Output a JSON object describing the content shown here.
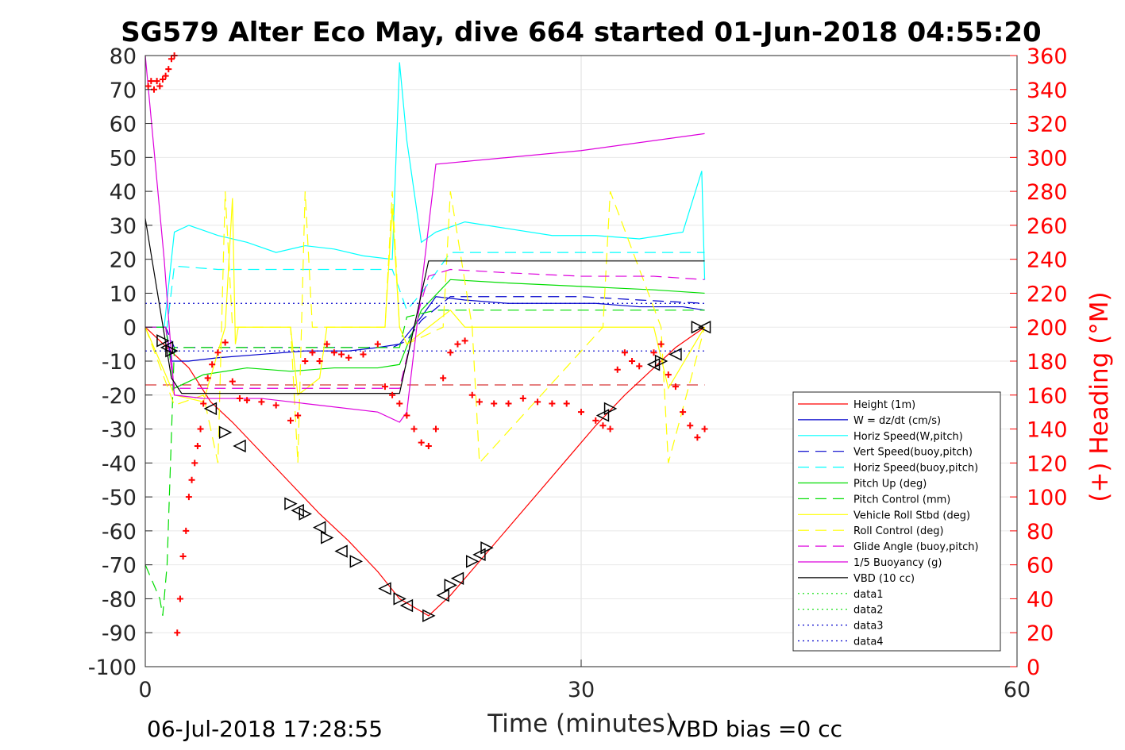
{
  "chart_data": {
    "type": "line",
    "title": "SG579 Alter Eco May, dive 664 started 01-Jun-2018 04:55:20",
    "xlabel": "Time (minutes)",
    "ylabel_right": "(+) Heading (°M)",
    "xlim": [
      0,
      60
    ],
    "ylim": [
      -100,
      80
    ],
    "ylim_right": [
      0,
      360
    ],
    "x_ticks": [
      0,
      30,
      60
    ],
    "y_ticks": [
      80,
      70,
      60,
      50,
      40,
      30,
      20,
      10,
      0,
      -10,
      -20,
      -30,
      -40,
      -50,
      -60,
      -70,
      -80,
      -90,
      -100
    ],
    "y_ticks_right": [
      360,
      340,
      320,
      300,
      280,
      260,
      240,
      220,
      200,
      180,
      160,
      140,
      120,
      100,
      80,
      60,
      40,
      20,
      0
    ],
    "grid": "on",
    "legend_position": "lower-right",
    "footer_left": "06-Jul-2018 17:28:55",
    "footer_right": "VBD bias =0 cc",
    "series": [
      {
        "name": "Height (1m)",
        "color": "#ff0000",
        "style": "solid",
        "x": [
          0,
          1.5,
          3,
          4.5,
          6,
          8,
          10,
          12,
          14,
          16,
          17.5,
          19.5,
          21,
          23,
          25,
          27,
          29,
          31,
          33,
          35,
          36.5,
          38.5
        ],
        "y": [
          0,
          -6,
          -12,
          -22,
          -28,
          -37,
          -46,
          -55,
          -63,
          -72,
          -80,
          -85,
          -79,
          -69,
          -59,
          -49,
          -39,
          -29,
          -20,
          -12,
          -6,
          0
        ]
      },
      {
        "name": "W = dz/dt (cm/s)",
        "color": "#0000cc",
        "style": "solid",
        "x": [
          0,
          1.4,
          1.8,
          3,
          5,
          8,
          11,
          14,
          16,
          17.5,
          19,
          20,
          22,
          25,
          28,
          31,
          34,
          37,
          38.5
        ],
        "y": [
          0,
          0,
          -10,
          -10,
          -9,
          -8,
          -7,
          -7,
          -6,
          -5,
          3,
          9,
          8,
          7,
          7,
          7,
          6,
          6,
          5
        ]
      },
      {
        "name": "Horiz Speed(W,pitch)",
        "color": "#00ffff",
        "style": "solid",
        "x": [
          0,
          1.3,
          2,
          3,
          5,
          7,
          9,
          11,
          13,
          15,
          17,
          17.5,
          18,
          19,
          20,
          22,
          25,
          28,
          31,
          34,
          37,
          38.3,
          38.5
        ],
        "y": [
          0,
          0,
          28,
          30,
          27,
          25,
          22,
          24,
          23,
          21,
          20,
          78,
          55,
          25,
          28,
          31,
          29,
          27,
          27,
          26,
          28,
          46,
          14
        ]
      },
      {
        "name": "Vert Speed(buoy,pitch)",
        "color": "#0000cc",
        "style": "dashed",
        "x": [
          0,
          1.4,
          2,
          5,
          8,
          11,
          14,
          17,
          18,
          19,
          21,
          25,
          30,
          34,
          38.5
        ],
        "y": [
          0,
          0,
          -6,
          -6,
          -6,
          -6,
          -6,
          -6,
          -4,
          2,
          9,
          9,
          9,
          8,
          7
        ]
      },
      {
        "name": "Horiz Speed(buoy,pitch)",
        "color": "#00ffff",
        "style": "dashed",
        "x": [
          0,
          1.5,
          2,
          5,
          8,
          11,
          14,
          17,
          18,
          19,
          21,
          25,
          30,
          35,
          38.5
        ],
        "y": [
          0,
          0,
          18,
          17,
          17,
          17,
          17,
          17,
          5,
          10,
          22,
          22,
          22,
          22,
          22
        ]
      },
      {
        "name": "Pitch Up (deg)",
        "color": "#00dd00",
        "style": "solid",
        "x": [
          0,
          1.4,
          2,
          4,
          7,
          10,
          13,
          16,
          17.5,
          19,
          21,
          25,
          30,
          35,
          38.5
        ],
        "y": [
          0,
          0,
          -18,
          -14,
          -12,
          -13,
          -12,
          -12,
          -11,
          5,
          14,
          13,
          12,
          11,
          10
        ]
      },
      {
        "name": "Pitch Control (mm)",
        "color": "#00dd00",
        "style": "dashed",
        "x": [
          0,
          1,
          1.2,
          1.5,
          2,
          3,
          10,
          17.5,
          18,
          20,
          38.5
        ],
        "y": [
          -70,
          -80,
          -85,
          -70,
          -6,
          -6,
          -6,
          -6,
          3,
          5,
          5
        ]
      },
      {
        "name": "Vehicle Roll Stbd (deg)",
        "color": "#ffff00",
        "style": "solid",
        "x": [
          0,
          2,
          4,
          5.5,
          6,
          6.2,
          6.4,
          10,
          10.5,
          12,
          12.5,
          16.5,
          17,
          17.5,
          18,
          21,
          22,
          35,
          36,
          38.5
        ],
        "y": [
          0,
          -20,
          -22,
          0,
          38,
          -5,
          0,
          0,
          -20,
          -15,
          0,
          0,
          35,
          0,
          -5,
          5,
          0,
          0,
          -18,
          0
        ]
      },
      {
        "name": "Roll Control (deg)",
        "color": "#ffff00",
        "style": "dashed",
        "x": [
          0,
          2,
          4,
          5,
          5.5,
          6,
          6.5,
          10,
          10.5,
          11,
          11.5,
          16.5,
          17,
          17.5,
          18,
          20.5,
          21,
          22.5,
          23,
          31.5,
          32,
          35.5,
          36,
          38.5
        ],
        "y": [
          0,
          -23,
          -20,
          -40,
          40,
          0,
          0,
          0,
          -40,
          40,
          0,
          0,
          40,
          0,
          -5,
          0,
          40,
          0,
          -40,
          0,
          40,
          0,
          -40,
          0
        ]
      },
      {
        "name": "Glide Angle (buoy,pitch)",
        "color": "#dd00dd",
        "style": "dashed",
        "x": [
          0,
          1.4,
          2,
          5,
          8,
          11,
          14,
          17.5,
          18.5,
          19.5,
          21,
          25,
          30,
          35,
          38.5
        ],
        "y": [
          0,
          0,
          -18,
          -18,
          -18,
          -18,
          -18,
          -18,
          0,
          15,
          17,
          16,
          15,
          15,
          14
        ]
      },
      {
        "name": "1/5 Buoyancy (g)",
        "color": "#dd00dd",
        "style": "solid",
        "x": [
          0,
          1.3,
          2,
          4,
          8,
          12,
          16,
          17.5,
          18,
          20,
          30,
          38.5
        ],
        "y": [
          80,
          20,
          -20,
          -21,
          -21,
          -23,
          -25,
          -28,
          -25,
          48,
          52,
          57
        ]
      },
      {
        "name": "VBD (10 cc)",
        "color": "#000000",
        "style": "solid",
        "x": [
          0,
          1.8,
          2.5,
          17.5,
          19.5,
          38.5
        ],
        "y": [
          32,
          -15,
          -19.5,
          -19.5,
          19.5,
          19.5
        ]
      },
      {
        "name": "data1",
        "color": "#00dd00",
        "style": "dotted",
        "x": [],
        "y": []
      },
      {
        "name": "data2",
        "color": "#00dd00",
        "style": "dotted",
        "x": [],
        "y": []
      },
      {
        "name": "data3",
        "color": "#0000cc",
        "style": "dotted",
        "x": [
          0,
          38.5
        ],
        "y": [
          7,
          7
        ]
      },
      {
        "name": "data4",
        "color": "#0000cc",
        "style": "dotted",
        "x": [
          0,
          38.5
        ],
        "y": [
          -7,
          -7
        ]
      }
    ],
    "heading_reference": {
      "color": "#cc0000",
      "style": "dashed",
      "x": [
        0,
        38.5
      ],
      "y": [
        -17,
        -17
      ]
    },
    "heading_points": {
      "color": "#ff0000",
      "x": [
        0.2,
        0.4,
        0.6,
        0.8,
        1.0,
        1.2,
        1.4,
        1.6,
        1.8,
        2.0,
        2.2,
        2.4,
        2.6,
        2.8,
        3.0,
        3.2,
        3.4,
        3.6,
        3.8,
        4.0,
        4.3,
        4.6,
        5.0,
        5.5,
        6.0,
        6.5,
        7.0,
        8.0,
        9.0,
        10.0,
        10.5,
        11.0,
        11.5,
        12.0,
        12.5,
        13.0,
        13.5,
        14.0,
        15.0,
        16.0,
        16.5,
        17.0,
        17.5,
        18.0,
        18.5,
        19.0,
        19.5,
        20.0,
        20.5,
        21.0,
        21.5,
        22.0,
        22.5,
        23.0,
        24.0,
        25.0,
        26.0,
        27.0,
        28.0,
        29.0,
        30.0,
        31.0,
        31.5,
        32.0,
        32.5,
        33.0,
        33.5,
        34.0,
        35.0,
        35.5,
        36.0,
        36.5,
        37.0,
        37.5,
        38.0,
        38.5
      ],
      "y": [
        342,
        345,
        340,
        345,
        342,
        346,
        348,
        352,
        358,
        360,
        20,
        40,
        65,
        80,
        100,
        110,
        120,
        130,
        140,
        155,
        170,
        178,
        185,
        191,
        168,
        158,
        157,
        156,
        154,
        145,
        148,
        180,
        185,
        180,
        190,
        185,
        184,
        182,
        184,
        190,
        165,
        160,
        155,
        148,
        140,
        132,
        130,
        140,
        170,
        185,
        190,
        192,
        160,
        156,
        155,
        155,
        158,
        156,
        155,
        155,
        150,
        145,
        142,
        140,
        175,
        185,
        180,
        177,
        185,
        190,
        172,
        165,
        150,
        142,
        135,
        140
      ]
    },
    "depth_markers": {
      "color": "#000000",
      "x": [
        1.2,
        1.5,
        1.8,
        4.5,
        5.5,
        6.5,
        10,
        10.5,
        11,
        12,
        12.5,
        13.5,
        14.5,
        16.5,
        17.5,
        18,
        19.5,
        20.5,
        21,
        21.5,
        22.5,
        23,
        23.5,
        31.5,
        32,
        35,
        35.5,
        36.5,
        38,
        38.5
      ],
      "y": [
        -4,
        -6,
        -7,
        -24,
        -31,
        -35,
        -52,
        -54,
        -55,
        -59,
        -62,
        -66,
        -69,
        -77,
        -80,
        -82,
        -85,
        -79,
        -76,
        -74,
        -69,
        -67,
        -65,
        -26,
        -24,
        -11,
        -10,
        -8,
        0,
        0
      ]
    }
  }
}
